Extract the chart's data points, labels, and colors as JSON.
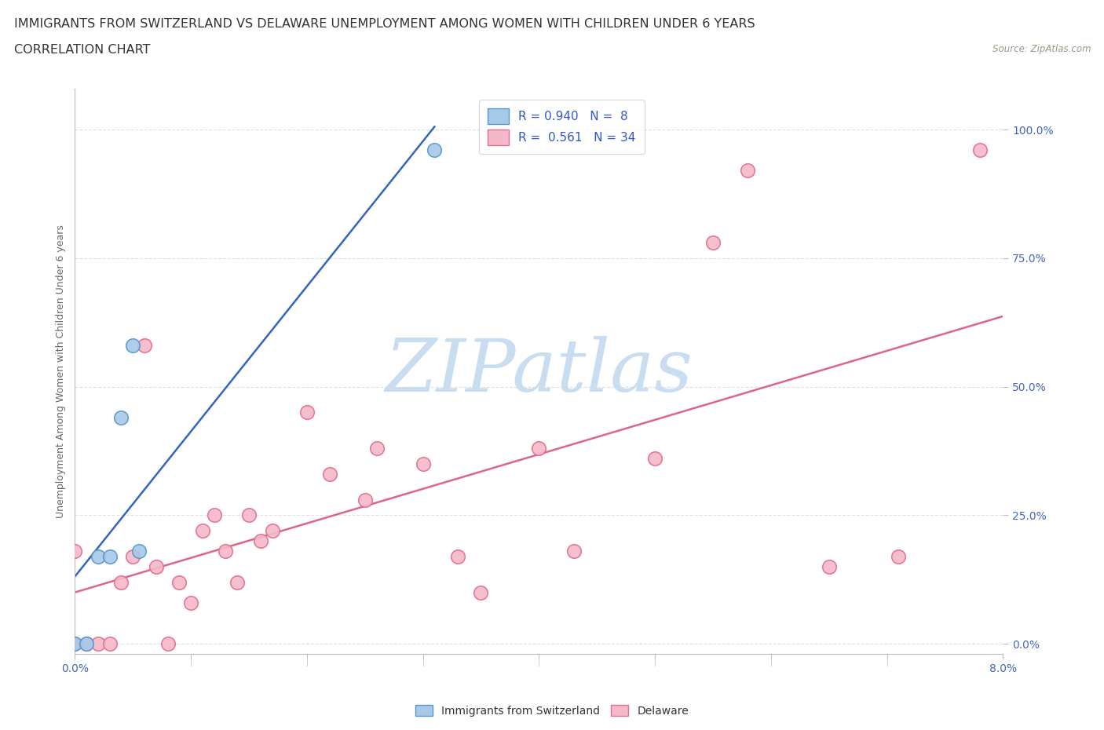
{
  "title_line1": "IMMIGRANTS FROM SWITZERLAND VS DELAWARE UNEMPLOYMENT AMONG WOMEN WITH CHILDREN UNDER 6 YEARS",
  "title_line2": "CORRELATION CHART",
  "source_text": "Source: ZipAtlas.com",
  "xlim": [
    0.0,
    0.08
  ],
  "ylim": [
    -0.02,
    1.08
  ],
  "ylabel": "Unemployment Among Women with Children Under 6 years",
  "ytick_vals": [
    0.0,
    0.25,
    0.5,
    0.75,
    1.0
  ],
  "ytick_labels": [
    "0.0%",
    "25.0%",
    "50.0%",
    "75.0%",
    "100.0%"
  ],
  "xtick_vals": [
    0.0,
    0.08
  ],
  "xtick_labels": [
    "0.0%",
    "8.0%"
  ],
  "r_blue": 0.94,
  "n_blue": 8,
  "r_pink": 0.561,
  "n_pink": 34,
  "blue_scatter_color": "#a8c8e8",
  "blue_edge_color": "#5599cc",
  "pink_scatter_color": "#f5b8c8",
  "pink_edge_color": "#e07090",
  "blue_line_color": "#3366bb",
  "pink_line_color": "#dd6688",
  "legend_blue_label": "Immigrants from Switzerland",
  "legend_pink_label": "Delaware",
  "blue_scatter_x": [
    0.0,
    0.001,
    0.002,
    0.003,
    0.004,
    0.005,
    0.0055,
    0.031
  ],
  "blue_scatter_y": [
    0.0,
    0.0,
    0.17,
    0.17,
    0.44,
    0.58,
    0.18,
    0.96
  ],
  "pink_scatter_x": [
    0.0,
    0.0,
    0.001,
    0.002,
    0.003,
    0.004,
    0.005,
    0.006,
    0.007,
    0.008,
    0.009,
    0.01,
    0.011,
    0.012,
    0.013,
    0.014,
    0.015,
    0.016,
    0.017,
    0.02,
    0.022,
    0.025,
    0.026,
    0.03,
    0.033,
    0.035,
    0.04,
    0.043,
    0.05,
    0.055,
    0.058,
    0.065,
    0.071,
    0.078
  ],
  "pink_scatter_y": [
    0.0,
    0.18,
    0.0,
    0.0,
    0.0,
    0.12,
    0.17,
    0.58,
    0.15,
    0.0,
    0.12,
    0.08,
    0.22,
    0.25,
    0.18,
    0.12,
    0.25,
    0.2,
    0.22,
    0.45,
    0.33,
    0.28,
    0.38,
    0.35,
    0.17,
    0.1,
    0.38,
    0.18,
    0.36,
    0.78,
    0.92,
    0.15,
    0.17,
    0.96
  ],
  "background_color": "#ffffff",
  "grid_color": "#e0e0e0",
  "watermark_text": "ZIPatlas",
  "watermark_color": "#c8ddf0",
  "title_fontsize": 11.5,
  "subtitle_fontsize": 11.5,
  "source_fontsize": 8.5,
  "axis_label_fontsize": 9,
  "tick_fontsize": 10,
  "legend_fontsize": 11
}
